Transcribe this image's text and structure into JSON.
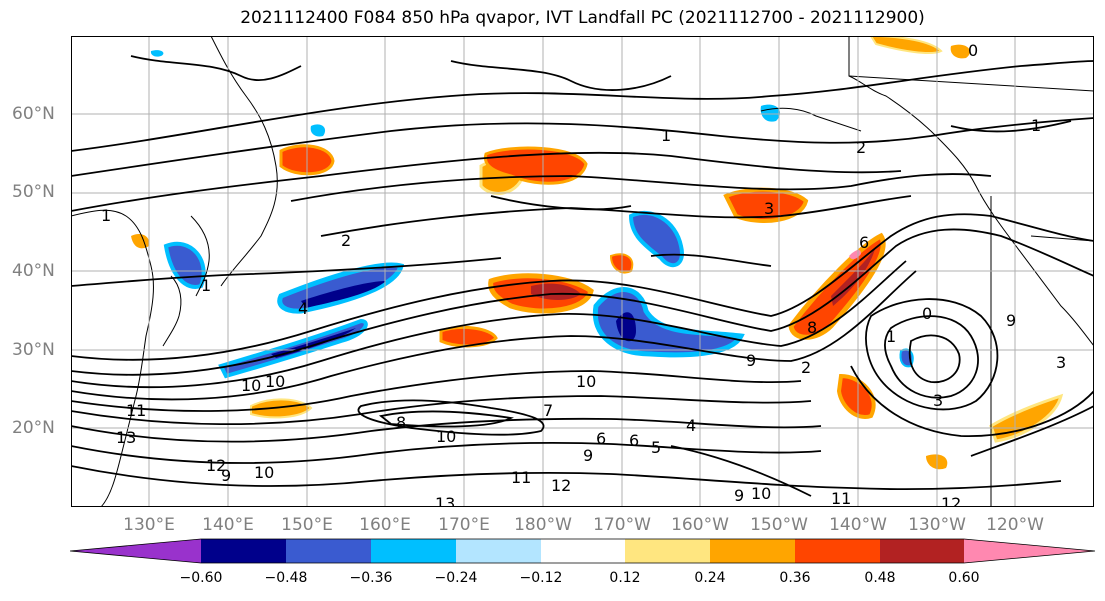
{
  "title": "2021112400 F084 850 hPa qvapor, IVT Landfall PC (2021112700 - 2021112900)",
  "lat_labels": [
    "60°N",
    "50°N",
    "40°N",
    "30°N",
    "20°N"
  ],
  "lon_labels": [
    "130°E",
    "140°E",
    "150°E",
    "160°E",
    "170°E",
    "180°W",
    "170°W",
    "160°W",
    "150°W",
    "140°W",
    "130°W",
    "120°W"
  ],
  "colorbar": {
    "ticks": [
      "−0.60",
      "−0.48",
      "−0.36",
      "−0.24",
      "−0.12",
      "0.12",
      "0.24",
      "0.36",
      "0.48",
      "0.60"
    ],
    "colors": [
      "#9932cc",
      "#00008b",
      "#3a5bd0",
      "#00bfff",
      "#b3e5ff",
      "#ffffff",
      "#ffe680",
      "#ffa500",
      "#ff4500",
      "#b22222",
      "#ff88b0"
    ]
  },
  "contour_labels": [
    "0",
    "1",
    "2",
    "3",
    "6",
    "1",
    "0",
    "1",
    "3",
    "4",
    "2",
    "1",
    "8",
    "9",
    "9",
    "11",
    "10",
    "8",
    "10",
    "9",
    "10",
    "10",
    "12",
    "13",
    "11",
    "12",
    "13",
    "11",
    "9",
    "10",
    "12",
    "10",
    "6",
    "9",
    "1",
    "2",
    "3",
    "4",
    "5",
    "6",
    "7"
  ]
}
